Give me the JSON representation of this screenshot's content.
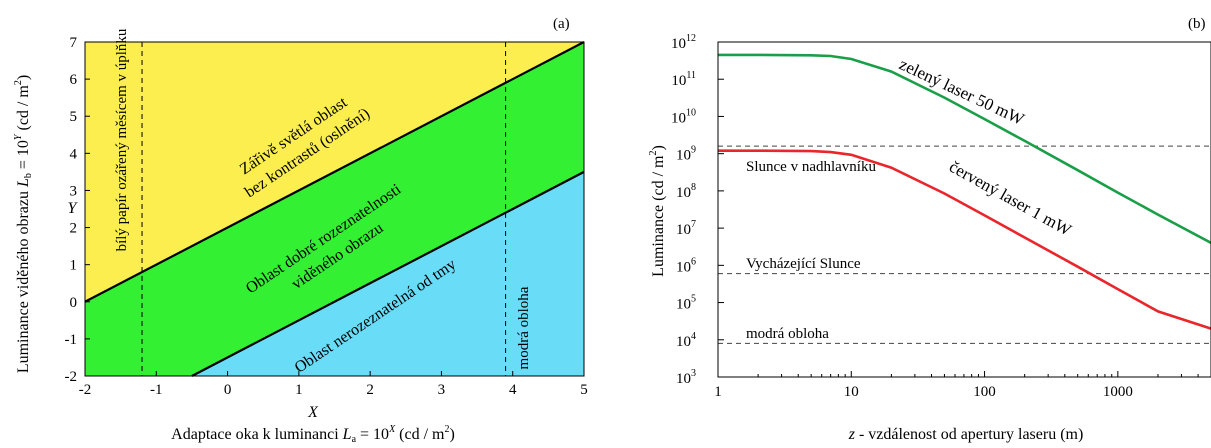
{
  "chart_data": [
    {
      "panel_label": "(a)",
      "type": "area",
      "xlabel": "X",
      "xlabel_full": "Adaptace oka k luminanci L_a = 10^X (cd / m^2)",
      "xlabel_parts": {
        "prefix": "Adaptace oka k luminanci ",
        "var": "L",
        "sub": "a",
        "mid": " = 10",
        "sup": "X",
        "suffix": " (cd / m",
        "sup2": "2",
        "end": ")"
      },
      "ylabel": "Y",
      "ylabel_full": "Luminance viděného obrazu L_b = 10^Y (cd / m^2)",
      "ylabel_parts": {
        "prefix": "Luminance viděného obrazu ",
        "var": "L",
        "sub": "b",
        "mid": " = 10",
        "sup": "Y",
        "suffix": " (cd / m",
        "sup2": "2",
        "end": ")"
      },
      "xlim": [
        -2,
        5
      ],
      "ylim": [
        -2,
        7
      ],
      "xticks": [
        "-2",
        "-1",
        "0",
        "1",
        "2",
        "3",
        "4",
        "5"
      ],
      "yticks": [
        "-2",
        "-1",
        "0",
        "1",
        "2",
        "3",
        "4",
        "5",
        "6",
        "7"
      ],
      "boundary_lines": [
        {
          "name": "upper",
          "x": [
            -2,
            5
          ],
          "y": [
            0,
            7
          ]
        },
        {
          "name": "lower",
          "x": [
            -0.5,
            5
          ],
          "y": [
            -2,
            3.5
          ]
        }
      ],
      "vertical_markers": [
        {
          "x": -1.2,
          "label": "bílý papír ozářený měsícem v úplňku"
        },
        {
          "x": 3.9,
          "label": "modrá obloha"
        }
      ],
      "regions": [
        {
          "label_lines": [
            "Zářivě světlá oblast",
            "bez kontrastů (oslnění)"
          ],
          "color": "#fbee4e"
        },
        {
          "label_lines": [
            "Oblast dobré rozeznatelnosti",
            "viděného obrazu"
          ],
          "color": "#33f033"
        },
        {
          "label_lines": [
            "Oblast nerozeznatelná od tmy"
          ],
          "color": "#69dcf7"
        }
      ]
    },
    {
      "panel_label": "(b)",
      "type": "line",
      "xscale": "log",
      "yscale": "log",
      "xlabel": "z - vzdálenost od apertury laseru (m)",
      "xlabel_parts": {
        "var": "z",
        "rest": " - vzdálenost od apertury laseru (m)"
      },
      "ylabel": "Luminance (cd / m^2)",
      "ylabel_parts": {
        "prefix": "Luminance (cd / m",
        "sup": "2",
        "end": ")"
      },
      "xlim": [
        1,
        5000
      ],
      "ylim": [
        1000,
        1000000000000
      ],
      "xticks": [
        "1",
        "10",
        "100",
        "1000"
      ],
      "yticks": [
        {
          "base": "10",
          "exp": "3"
        },
        {
          "base": "10",
          "exp": "4"
        },
        {
          "base": "10",
          "exp": "5"
        },
        {
          "base": "10",
          "exp": "6"
        },
        {
          "base": "10",
          "exp": "7"
        },
        {
          "base": "10",
          "exp": "8"
        },
        {
          "base": "10",
          "exp": "9"
        },
        {
          "base": "10",
          "exp": "10"
        },
        {
          "base": "10",
          "exp": "11"
        },
        {
          "base": "10",
          "exp": "12"
        }
      ],
      "series": [
        {
          "name": "zelený laser 50 mW",
          "color": "#1a9f48",
          "x": [
            1,
            2,
            5,
            7,
            10,
            20,
            50,
            100,
            200,
            500,
            1000,
            2000,
            5000
          ],
          "y": [
            450000000000.0,
            450000000000.0,
            440000000000.0,
            420000000000.0,
            350000000000.0,
            160000000000.0,
            32000000000.0,
            8500000000.0,
            2200000000.0,
            360000000.0,
            90000000.0,
            23000000.0,
            4000000.0
          ]
        },
        {
          "name": "červený laser 1 mW",
          "color": "#e8262b",
          "x": [
            1,
            2,
            5,
            7,
            10,
            20,
            50,
            100,
            200,
            500,
            1000,
            2000,
            5000
          ],
          "y": [
            1200000000.0,
            1200000000.0,
            1170000000.0,
            1100000000.0,
            930000000.0,
            420000000.0,
            85000000.0,
            22000000.0,
            5600000.0,
            920000.0,
            230000.0,
            58000.0,
            20000.0
          ]
        }
      ],
      "reference_lines": [
        {
          "label": "Slunce v nadhlavníku",
          "y": 1600000000.0
        },
        {
          "label": "Vycházející Slunce",
          "y": 600000.0
        },
        {
          "label": "modrá obloha",
          "y": 8000.0
        }
      ]
    }
  ]
}
